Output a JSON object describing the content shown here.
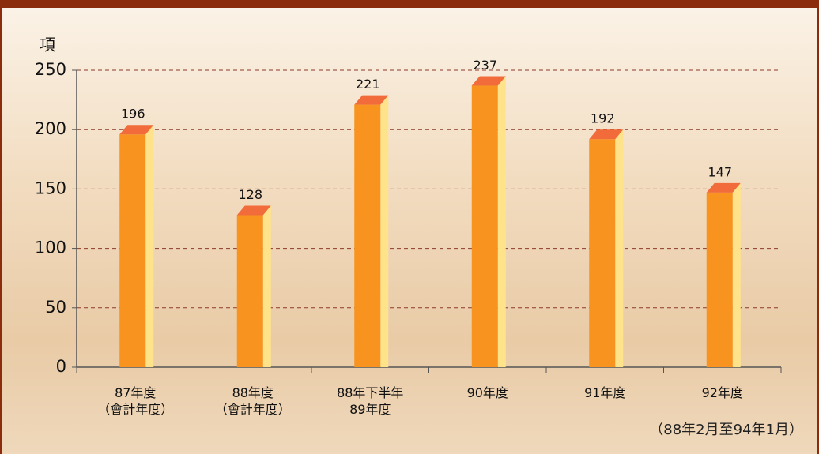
{
  "chart_data": {
    "type": "bar",
    "y_label": "項",
    "categories": [
      "87年度\n（會計年度）",
      "88年度\n（會計年度）",
      "88年下半年\n89年度",
      "90年度",
      "91年度",
      "92年度"
    ],
    "values": [
      196,
      128,
      221,
      237,
      192,
      147
    ],
    "colors": {
      "front": "#f7931e",
      "side": "#ffe38a",
      "top": "#f26b3a"
    },
    "ylim": [
      0,
      250
    ],
    "yticks": [
      0,
      50,
      100,
      150,
      200,
      250
    ],
    "grid": true,
    "note": "（88年2月至94年1月）"
  }
}
